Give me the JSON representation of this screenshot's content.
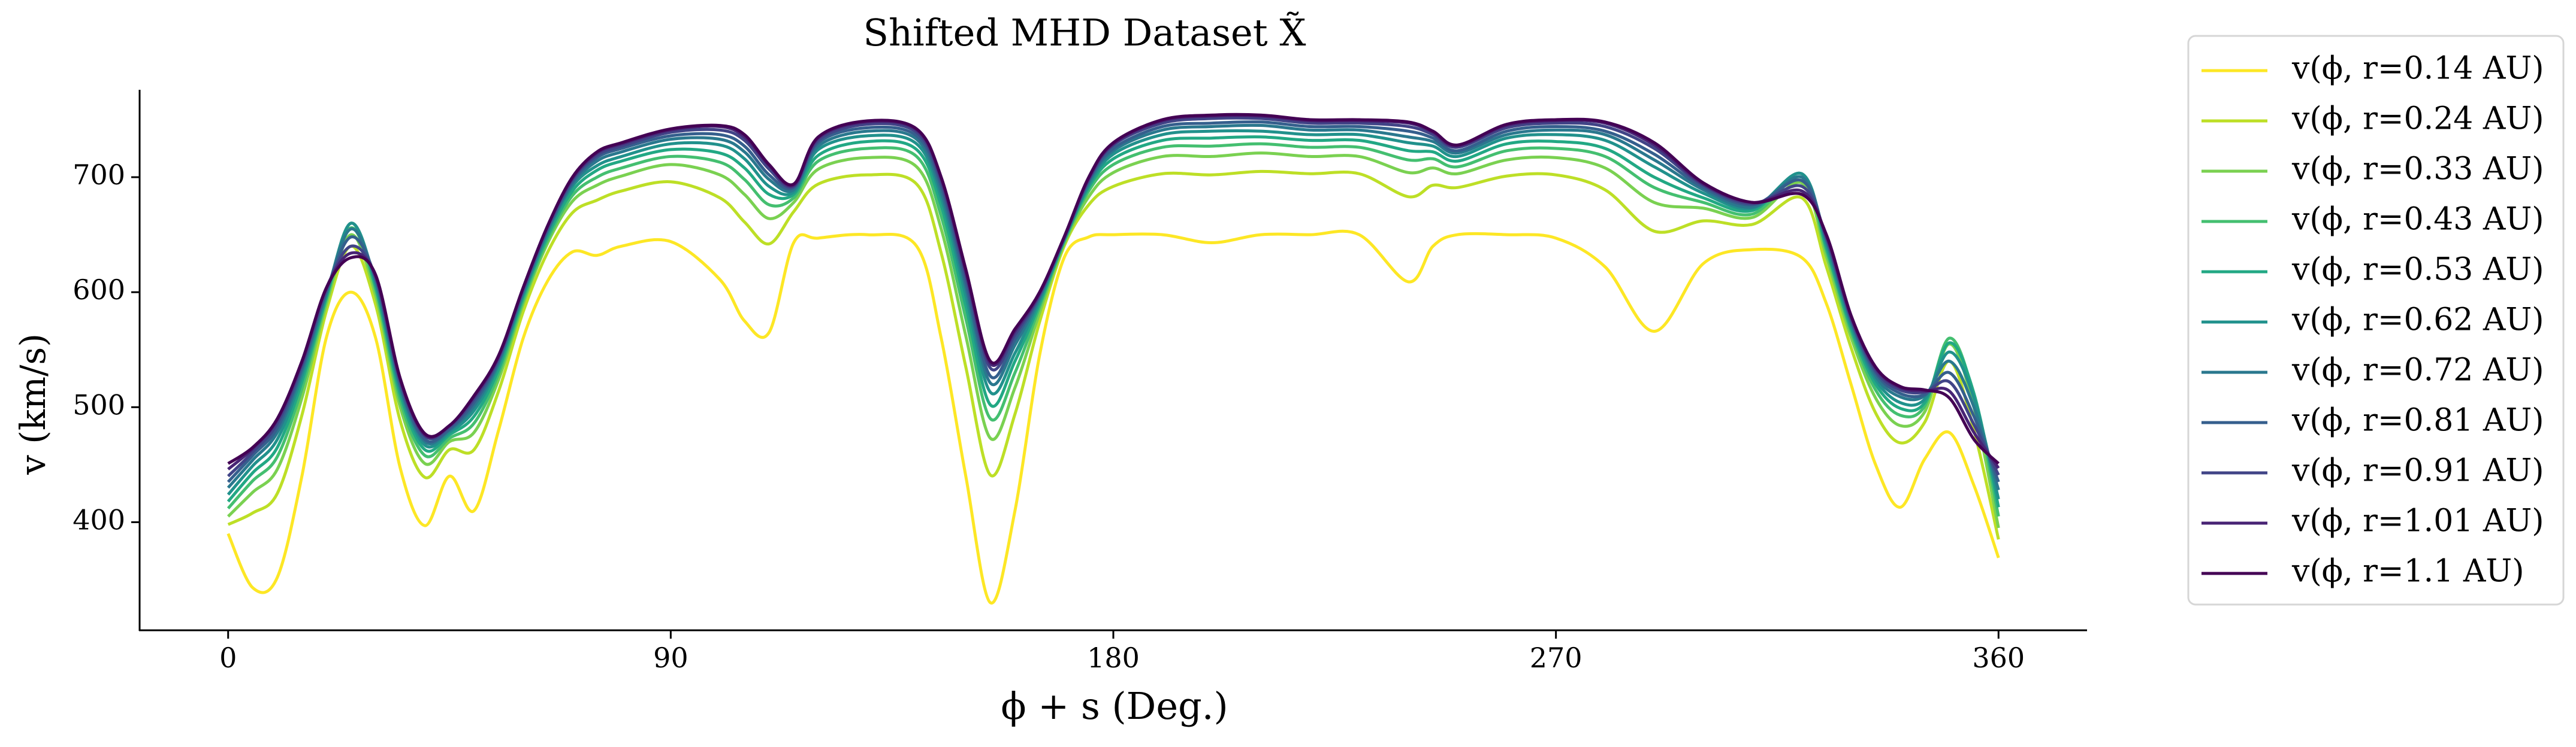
{
  "chart_data": {
    "type": "line",
    "title": "Shifted MHD Dataset X̃",
    "xlabel": "ϕ + s (Deg.)",
    "ylabel": "v (km/s)",
    "x": [
      0,
      5,
      10,
      15,
      20,
      25,
      30,
      35,
      40,
      45,
      50,
      55,
      60,
      65,
      70,
      75,
      80,
      90,
      100,
      105,
      110,
      115,
      120,
      130,
      140,
      145,
      150,
      155,
      160,
      165,
      170,
      175,
      180,
      190,
      200,
      210,
      220,
      230,
      240,
      245,
      250,
      260,
      270,
      280,
      290,
      300,
      310,
      320,
      325,
      330,
      335,
      340,
      345,
      350,
      355,
      360
    ],
    "xlim": [
      -18,
      378
    ],
    "xticks": [
      0,
      90,
      180,
      270,
      360
    ],
    "ylim": [
      306,
      776
    ],
    "yticks": [
      400,
      500,
      600,
      700
    ],
    "legend": "outside-right",
    "series": [
      {
        "name": "v(ϕ, r=0.14 AU)",
        "color": "#fde725",
        "values": [
          390,
          343,
          352,
          440,
          561,
          600,
          560,
          447,
          397,
          440,
          410,
          480,
          560,
          610,
          635,
          632,
          640,
          644,
          611,
          575,
          565,
          643,
          647,
          650,
          640,
          560,
          440,
          330,
          410,
          545,
          630,
          648,
          650,
          650,
          643,
          650,
          650,
          650,
          609,
          640,
          650,
          650,
          647,
          622,
          566,
          625,
          637,
          630,
          590,
          520,
          450,
          413,
          455,
          478,
          432,
          369
        ]
      },
      {
        "name": "v(ϕ, r=0.24 AU)",
        "color": "#bddf26",
        "values": [
          398,
          408,
          425,
          493,
          584,
          640,
          589,
          488,
          439,
          463,
          463,
          514,
          583,
          635,
          669,
          680,
          688,
          696,
          682,
          661,
          642,
          670,
          694,
          702,
          694,
          634,
          535,
          441,
          494,
          574,
          640,
          676,
          692,
          703,
          702,
          705,
          703,
          703,
          683,
          693,
          691,
          701,
          702,
          689,
          653,
          662,
          659,
          682,
          622,
          552,
          495,
          469,
          487,
          540,
          480,
          385
        ]
      },
      {
        "name": "v(ϕ, r=0.33 AU)",
        "color": "#7ad151",
        "values": [
          405,
          426,
          446,
          508,
          590,
          650,
          597,
          500,
          451,
          470,
          478,
          524,
          590,
          643,
          679,
          693,
          701,
          711,
          702,
          685,
          664,
          678,
          707,
          717,
          709,
          655,
          562,
          473,
          517,
          582,
          642,
          683,
          704,
          718,
          718,
          721,
          718,
          718,
          704,
          708,
          703,
          715,
          717,
          708,
          678,
          673,
          665,
          695,
          631,
          561,
          508,
          484,
          496,
          555,
          500,
          395
        ]
      },
      {
        "name": "v(ϕ, r=0.43 AU)",
        "color": "#44bf70",
        "values": [
          412,
          436,
          457,
          516,
          594,
          656,
          602,
          506,
          458,
          473,
          486,
          529,
          593,
          646,
          684,
          700,
          708,
          718,
          713,
          698,
          676,
          682,
          714,
          725,
          718,
          666,
          577,
          490,
          530,
          587,
          644,
          688,
          711,
          726,
          727,
          729,
          726,
          726,
          715,
          716,
          709,
          723,
          725,
          718,
          691,
          678,
          668,
          700,
          636,
          566,
          515,
          493,
          501,
          560,
          510,
          405
        ]
      },
      {
        "name": "v(ϕ, r=0.53 AU)",
        "color": "#22a884",
        "values": [
          418,
          443,
          465,
          522,
          596,
          660,
          605,
          511,
          463,
          476,
          492,
          533,
          596,
          649,
          688,
          706,
          714,
          724,
          721,
          708,
          685,
          685,
          719,
          731,
          724,
          675,
          588,
          502,
          540,
          590,
          645,
          691,
          716,
          732,
          734,
          735,
          732,
          732,
          723,
          722,
          714,
          729,
          731,
          725,
          700,
          682,
          671,
          703,
          639,
          569,
          520,
          499,
          504,
          556,
          512,
          413
        ]
      },
      {
        "name": "v(ϕ, r=0.62 AU)",
        "color": "#21918c",
        "values": [
          424,
          449,
          472,
          527,
          598,
          660,
          608,
          515,
          467,
          478,
          497,
          537,
          598,
          652,
          692,
          710,
          718,
          729,
          728,
          716,
          692,
          687,
          724,
          736,
          729,
          682,
          597,
          513,
          547,
          593,
          646,
          693,
          720,
          737,
          740,
          740,
          737,
          737,
          730,
          727,
          718,
          734,
          737,
          732,
          709,
          686,
          673,
          703,
          642,
          572,
          524,
          504,
          507,
          548,
          508,
          420
        ]
      },
      {
        "name": "v(ϕ, r=0.72 AU)",
        "color": "#2a788e",
        "values": [
          430,
          454,
          478,
          531,
          600,
          655,
          610,
          518,
          470,
          480,
          501,
          539,
          600,
          654,
          694,
          714,
          722,
          733,
          733,
          722,
          698,
          689,
          727,
          740,
          733,
          687,
          604,
          521,
          554,
          595,
          646,
          695,
          723,
          741,
          744,
          745,
          741,
          741,
          735,
          731,
          721,
          737,
          741,
          737,
          715,
          689,
          674,
          700,
          645,
          575,
          527,
          509,
          510,
          540,
          500,
          428
        ]
      },
      {
        "name": "v(ϕ, r=0.81 AU)",
        "color": "#355f8d",
        "values": [
          435,
          458,
          482,
          534,
          601,
          648,
          612,
          520,
          472,
          481,
          504,
          541,
          601,
          655,
          696,
          717,
          725,
          736,
          737,
          727,
          702,
          691,
          730,
          743,
          736,
          692,
          609,
          527,
          559,
          597,
          647,
          697,
          725,
          744,
          747,
          748,
          744,
          744,
          740,
          734,
          723,
          740,
          744,
          740,
          720,
          691,
          676,
          697,
          646,
          576,
          530,
          512,
          511,
          530,
          492,
          435
        ]
      },
      {
        "name": "v(ϕ, r=0.91 AU)",
        "color": "#414487",
        "values": [
          440,
          461,
          486,
          537,
          603,
          640,
          613,
          523,
          475,
          483,
          507,
          543,
          603,
          657,
          698,
          719,
          727,
          739,
          741,
          732,
          707,
          692,
          732,
          746,
          739,
          696,
          615,
          534,
          563,
          598,
          647,
          698,
          728,
          747,
          751,
          751,
          747,
          747,
          744,
          737,
          726,
          743,
          747,
          744,
          725,
          693,
          677,
          692,
          648,
          578,
          532,
          515,
          513,
          522,
          485,
          441
        ]
      },
      {
        "name": "v(ϕ, r=1.01 AU)",
        "color": "#482475",
        "values": [
          446,
          464,
          489,
          539,
          604,
          634,
          614,
          524,
          476,
          484,
          509,
          544,
          604,
          658,
          699,
          721,
          729,
          741,
          744,
          735,
          710,
          693,
          734,
          748,
          741,
          699,
          618,
          538,
          566,
          599,
          648,
          699,
          729,
          749,
          753,
          753,
          749,
          749,
          747,
          739,
          727,
          745,
          749,
          747,
          728,
          694,
          678,
          688,
          649,
          579,
          534,
          517,
          514,
          514,
          478,
          447
        ]
      },
      {
        "name": "v(ϕ, r=1.1 AU)",
        "color": "#440154",
        "values": [
          451,
          465,
          490,
          540,
          604,
          630,
          615,
          525,
          477,
          484,
          510,
          545,
          604,
          658,
          700,
          722,
          730,
          742,
          745,
          737,
          711,
          694,
          735,
          749,
          742,
          700,
          620,
          540,
          568,
          600,
          648,
          700,
          730,
          750,
          754,
          754,
          750,
          750,
          748,
          740,
          728,
          746,
          750,
          748,
          730,
          695,
          678,
          685,
          650,
          580,
          535,
          518,
          515,
          508,
          472,
          451
        ]
      }
    ]
  }
}
